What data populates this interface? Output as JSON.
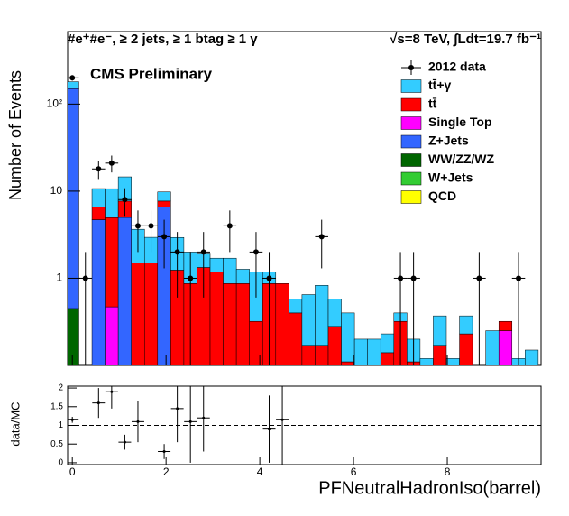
{
  "chart_data": [
    {
      "type": "stacked-histogram",
      "title": "#e⁺#e⁻, ≥ 2 jets, ≥ 1 btag ≥ 1 γ",
      "subtitle": "√s=8 TeV, ∫Ldt=19.7 fb⁻¹",
      "annotation": "CMS Preliminary",
      "ylabel": "Number of Events",
      "log_scale": true,
      "xlim": [
        -0.1,
        10
      ],
      "ylim": [
        0.1,
        680
      ],
      "yticks": [
        1,
        10,
        {
          "value": 100,
          "label": "10²"
        }
      ],
      "bins": [
        -0.14,
        0.14,
        0.42,
        0.7,
        0.98,
        1.26,
        1.54,
        1.82,
        2.1,
        2.38,
        2.66,
        2.94,
        3.22,
        3.5,
        3.78,
        4.06,
        4.34,
        4.62,
        4.9,
        5.18,
        5.46,
        5.74,
        6.02,
        6.3,
        6.58,
        6.86,
        7.14,
        7.42,
        7.7,
        7.98,
        8.26,
        8.54,
        8.82,
        9.1,
        9.38,
        9.66,
        9.94
      ],
      "data": {
        "name": "2012 data",
        "x": [
          0,
          0.28,
          0.56,
          0.84,
          1.12,
          1.4,
          1.68,
          1.96,
          2.24,
          2.52,
          2.8,
          3.36,
          3.92,
          4.2,
          5.32,
          7.0,
          7.28,
          8.68,
          9.52
        ],
        "values": [
          200,
          1,
          18,
          21,
          8,
          4,
          4,
          3,
          2,
          1,
          2,
          4,
          2,
          1,
          3,
          1,
          1,
          1,
          1
        ],
        "errors": [
          14.1,
          1,
          4.2,
          4.6,
          2.8,
          2,
          2,
          1.7,
          1.4,
          1,
          1.4,
          2,
          1.4,
          1,
          1.7,
          1,
          1,
          1,
          1
        ]
      },
      "series": [
        {
          "name": "tt̄+γ",
          "color": "#33ccff",
          "values": [
            30,
            0,
            4.1,
            5.7,
            6.9,
            2.15,
            1.45,
            2.1,
            1.7,
            1.13,
            0.57,
            0.52,
            0.83,
            0.4,
            0.86,
            0.31,
            0,
            0.18,
            0.48,
            0.66,
            0.3,
            0.29,
            0.2,
            0.2,
            0.09,
            0.08,
            0.09,
            0.12,
            0.2,
            0.12,
            0.14,
            0,
            0.25,
            0,
            0.12,
            0.15
          ]
        },
        {
          "name": "tt̄",
          "color": "#ff0000",
          "values": [
            0,
            0,
            1.9,
            4.5,
            2.7,
            1.5,
            1.5,
            1.1,
            1.24,
            0.87,
            1.33,
            1.18,
            0.87,
            0.87,
            0.32,
            0.87,
            0.87,
            0.4,
            0.17,
            0.17,
            0.28,
            0.11,
            0,
            0,
            0.14,
            0.32,
            0.11,
            0,
            0.17,
            0,
            0.23,
            0,
            0,
            0.07,
            0,
            0
          ]
        },
        {
          "name": "Single Top",
          "color": "#ff00ff",
          "values": [
            0,
            0,
            0,
            0.47,
            0,
            0,
            0,
            0,
            0,
            0,
            0,
            0,
            0,
            0,
            0,
            0,
            0,
            0,
            0,
            0,
            0,
            0,
            0,
            0,
            0,
            0,
            0,
            0,
            0,
            0,
            0,
            0,
            0,
            0.25,
            0,
            0
          ]
        },
        {
          "name": "Z+Jets",
          "color": "#3366ff",
          "values": [
            150,
            0,
            4.7,
            0,
            5,
            0,
            0,
            6.6,
            0,
            0,
            0,
            0,
            0,
            0,
            0,
            0,
            0,
            0,
            0,
            0,
            0,
            0,
            0,
            0,
            0,
            0,
            0,
            0,
            0,
            0,
            0,
            0,
            0,
            0,
            0,
            0
          ]
        },
        {
          "name": "WW/ZZ/WZ",
          "color": "#006600",
          "values": [
            0.45,
            0,
            0,
            0,
            0,
            0,
            0,
            0,
            0,
            0,
            0,
            0,
            0,
            0,
            0,
            0,
            0,
            0,
            0,
            0,
            0,
            0,
            0,
            0,
            0,
            0,
            0,
            0,
            0,
            0,
            0,
            0,
            0,
            0,
            0,
            0
          ]
        },
        {
          "name": "W+Jets",
          "color": "#33cc33",
          "values": [
            0,
            0,
            0,
            0,
            0,
            0,
            0,
            0,
            0,
            0,
            0,
            0,
            0,
            0,
            0,
            0,
            0,
            0,
            0,
            0,
            0,
            0,
            0,
            0,
            0,
            0,
            0,
            0,
            0,
            0,
            0,
            0,
            0,
            0,
            0,
            0
          ]
        },
        {
          "name": "QCD",
          "color": "#ffff00",
          "values": [
            0,
            0,
            0,
            0,
            0,
            0,
            0,
            0,
            0,
            0,
            0,
            0,
            0,
            0,
            0,
            0,
            0,
            0,
            0,
            0,
            0,
            0,
            0,
            0,
            0,
            0,
            0,
            0,
            0,
            0,
            0,
            0,
            0,
            0,
            0,
            0
          ]
        }
      ]
    },
    {
      "type": "ratio",
      "ylabel": "data/MC",
      "xlabel": "PFNeutralHadronIso(barrel)",
      "xlim": [
        -0.1,
        10
      ],
      "ylim": [
        -0.05,
        2.05
      ],
      "xticks": [
        0,
        2,
        4,
        6,
        8
      ],
      "yticks": [
        0,
        0.5,
        1,
        1.5,
        2
      ],
      "hline": 1,
      "x": [
        0,
        0.56,
        0.84,
        1.12,
        1.4,
        1.96,
        2.24,
        2.52,
        2.8,
        4.2,
        4.48
      ],
      "values": [
        1.15,
        1.6,
        1.9,
        0.55,
        1.1,
        0.3,
        1.45,
        1.1,
        1.2,
        0.9,
        1.15
      ],
      "errors": [
        0.08,
        0.4,
        0.45,
        0.2,
        0.55,
        0.2,
        0.9,
        1.1,
        0.9,
        0.9,
        1.2
      ]
    }
  ]
}
